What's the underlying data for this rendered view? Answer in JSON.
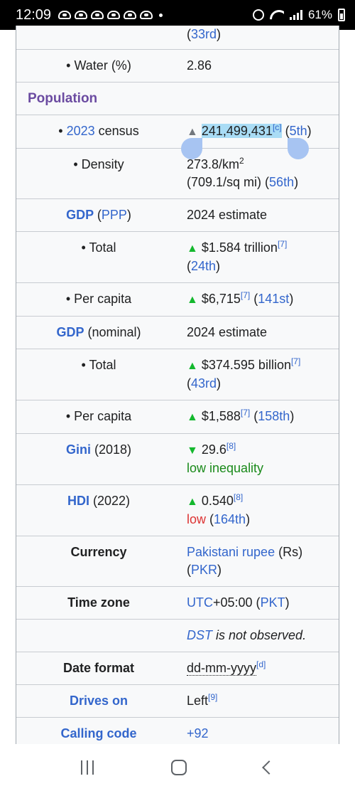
{
  "status": {
    "time": "12:09",
    "battery": "61%"
  },
  "rows": {
    "area_rank_tail": "33rd",
    "water_label": "• Water (%)",
    "water_value": "2.86",
    "population_header": "Population",
    "census_bullet": "• ",
    "census_year": "2023",
    "census_label_rest": " census",
    "census_value": "241,499,431",
    "census_ref": "[c]",
    "census_rank": "5th",
    "density_label": "• Density",
    "density_value_line1": "273.8/km",
    "density_sup": "2",
    "density_value_line2": "(709.1/sq mi)",
    "density_rank": "56th",
    "gdp_ppp_label": "GDP",
    "gdp_ppp_link": "PPP",
    "gdp_ppp_value": "2024 estimate",
    "ppp_total_label": "• Total",
    "ppp_total_value": "$1.584 trillion",
    "ppp_total_ref": "[7]",
    "ppp_total_rank": "24th",
    "ppp_percap_label": "• Per capita",
    "ppp_percap_value": "$6,715",
    "ppp_percap_ref": "[7]",
    "ppp_percap_rank": "141st",
    "gdp_nom_label": "GDP",
    "gdp_nom_rest": " (nominal)",
    "gdp_nom_value": "2024 estimate",
    "nom_total_label": "• Total",
    "nom_total_value": "$374.595 billion",
    "nom_total_ref": "[7]",
    "nom_total_rank": "43rd",
    "nom_percap_label": "• Per capita",
    "nom_percap_value": "$1,588",
    "nom_percap_ref": "[7]",
    "nom_percap_rank": "158th",
    "gini_label": "Gini",
    "gini_year": " (2018)",
    "gini_value": "29.6",
    "gini_ref": "[8]",
    "gini_desc": "low inequality",
    "hdi_label": "HDI",
    "hdi_year": " (2022)",
    "hdi_value": "0.540",
    "hdi_ref": "[8]",
    "hdi_desc": "low",
    "hdi_rank": "164th",
    "currency_label": "Currency",
    "currency_link": "Pakistani rupee",
    "currency_symbol": " (Rs)",
    "currency_code": "PKR",
    "timezone_label": "Time zone",
    "timezone_utc": "UTC",
    "timezone_offset": "+05:00 (",
    "timezone_code": "PKT",
    "dst_link": "DST",
    "dst_rest": " is not observed.",
    "dateformat_label": "Date format",
    "dateformat_value": "dd-mm-yyyy",
    "dateformat_ref": "[d]",
    "drives_label": "Drives on",
    "drives_value": "Left",
    "drives_ref": "[9]",
    "calling_label": "Calling code",
    "calling_value": "+92"
  }
}
